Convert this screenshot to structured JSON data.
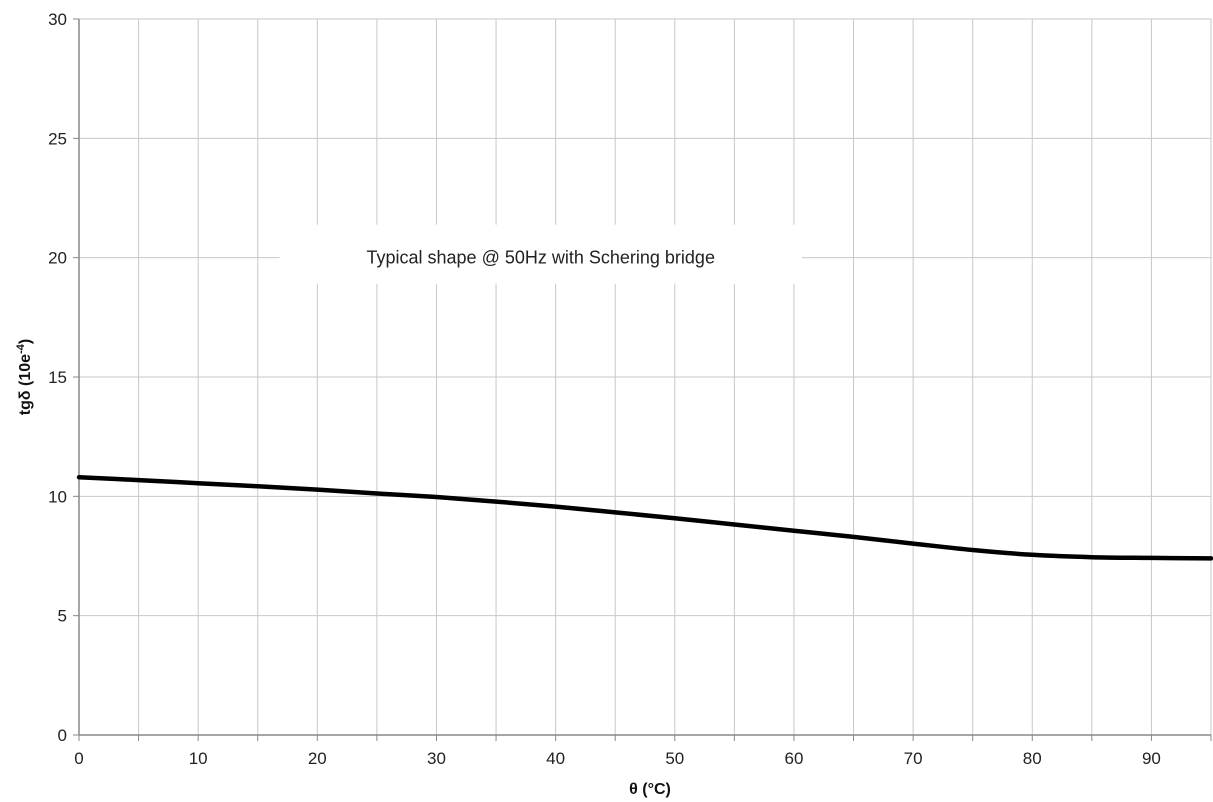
{
  "chart_data": {
    "type": "line",
    "title": "",
    "xlabel": "θ (°C)",
    "ylabel_main": "tgδ  (10e",
    "ylabel_sup": "-4",
    "ylabel_end": ")",
    "xlim": [
      0,
      95
    ],
    "ylim": [
      0,
      30
    ],
    "x_ticks": [
      0,
      10,
      20,
      30,
      40,
      50,
      60,
      70,
      80,
      90
    ],
    "y_ticks": [
      0,
      5,
      10,
      15,
      20,
      25,
      30
    ],
    "x_minor_step": 5,
    "grid": true,
    "annotation": "Typical shape @  50Hz with Schering bridge",
    "series": [
      {
        "x": [
          0,
          5,
          10,
          15,
          20,
          25,
          30,
          35,
          40,
          45,
          50,
          55,
          60,
          65,
          70,
          75,
          80,
          85,
          90,
          95
        ],
        "values": [
          10.8,
          10.68,
          10.55,
          10.42,
          10.28,
          10.12,
          9.97,
          9.78,
          9.57,
          9.33,
          9.08,
          8.82,
          8.56,
          8.3,
          8.02,
          7.75,
          7.55,
          7.45,
          7.42,
          7.4
        ]
      }
    ],
    "colors": {
      "line": "#000000",
      "grid": "#c8c8c8",
      "axis": "#888888"
    }
  }
}
